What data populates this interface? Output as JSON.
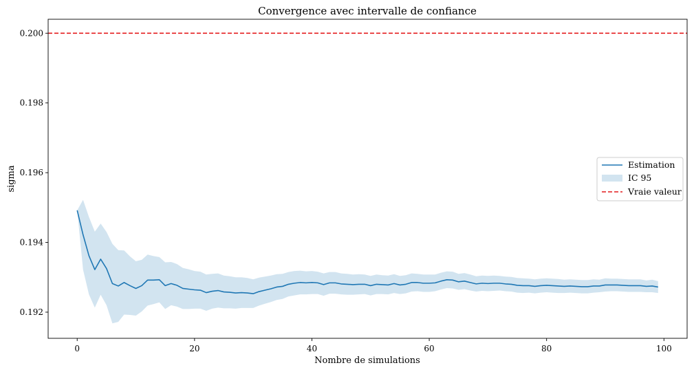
{
  "chart_data": {
    "type": "line",
    "title": "Convergence avec intervalle de confiance",
    "xlabel": "Nombre de simulations",
    "ylabel": "sigma",
    "xlim": [
      -4.95,
      103.95
    ],
    "ylim": [
      0.19125,
      0.2004
    ],
    "xticks": [
      0,
      20,
      40,
      60,
      80,
      100
    ],
    "xtick_labels": [
      "0",
      "20",
      "40",
      "60",
      "80",
      "100"
    ],
    "yticks": [
      0.192,
      0.194,
      0.196,
      0.198,
      0.2
    ],
    "ytick_labels": [
      "0.192",
      "0.194",
      "0.196",
      "0.198",
      "0.200"
    ],
    "grid": false,
    "legend_position": "center-right",
    "colors": {
      "estimation": "#1f77b4",
      "band": "#1f77b4",
      "true_value": "#e41a1c"
    },
    "estimation": {
      "name": "Estimation",
      "x": [
        0,
        1,
        2,
        3,
        4,
        5,
        6,
        7,
        8,
        9,
        10,
        11,
        12,
        13,
        14,
        15,
        16,
        17,
        18,
        19,
        20,
        21,
        22,
        23,
        24,
        25,
        26,
        27,
        28,
        29,
        30,
        31,
        32,
        33,
        34,
        35,
        36,
        37,
        38,
        39,
        40,
        41,
        42,
        43,
        44,
        45,
        46,
        47,
        48,
        49,
        50,
        51,
        52,
        53,
        54,
        55,
        56,
        57,
        58,
        59,
        60,
        61,
        62,
        63,
        64,
        65,
        66,
        67,
        68,
        69,
        70,
        71,
        72,
        73,
        74,
        75,
        76,
        77,
        78,
        79,
        80,
        81,
        82,
        83,
        84,
        85,
        86,
        87,
        88,
        89,
        90,
        91,
        92,
        93,
        94,
        95,
        96,
        97,
        98,
        99
      ],
      "y": [
        0.19492,
        0.19422,
        0.19362,
        0.19322,
        0.19352,
        0.19325,
        0.19282,
        0.19275,
        0.19285,
        0.19276,
        0.19268,
        0.19276,
        0.19292,
        0.19292,
        0.19293,
        0.19276,
        0.19282,
        0.19277,
        0.19268,
        0.19266,
        0.19264,
        0.19263,
        0.19256,
        0.1926,
        0.19262,
        0.19258,
        0.19257,
        0.19255,
        0.19256,
        0.19255,
        0.19253,
        0.19259,
        0.19263,
        0.19267,
        0.19272,
        0.19274,
        0.1928,
        0.19283,
        0.19285,
        0.19284,
        0.19285,
        0.19284,
        0.19279,
        0.19284,
        0.19284,
        0.19281,
        0.1928,
        0.19279,
        0.1928,
        0.1928,
        0.19276,
        0.1928,
        0.19279,
        0.19278,
        0.19282,
        0.19278,
        0.1928,
        0.19285,
        0.19285,
        0.19283,
        0.19283,
        0.19284,
        0.19289,
        0.19293,
        0.19292,
        0.19287,
        0.19289,
        0.19285,
        0.19281,
        0.19283,
        0.19282,
        0.19283,
        0.19283,
        0.19281,
        0.1928,
        0.19277,
        0.19276,
        0.19276,
        0.19274,
        0.19276,
        0.19277,
        0.19276,
        0.19275,
        0.19274,
        0.19275,
        0.19274,
        0.19273,
        0.19273,
        0.19275,
        0.19275,
        0.19278,
        0.19278,
        0.19278,
        0.19277,
        0.19276,
        0.19276,
        0.19276,
        0.19274,
        0.19275,
        0.19272
      ]
    },
    "confidence_band": {
      "name": "IC 95",
      "lower": [
        0.19492,
        0.19322,
        0.19251,
        0.19213,
        0.1925,
        0.1922,
        0.19168,
        0.19172,
        0.19193,
        0.19192,
        0.1919,
        0.19202,
        0.19219,
        0.19223,
        0.19228,
        0.19209,
        0.1922,
        0.19216,
        0.19209,
        0.19209,
        0.1921,
        0.1921,
        0.19204,
        0.1921,
        0.19213,
        0.19211,
        0.19211,
        0.1921,
        0.19212,
        0.19212,
        0.19212,
        0.19219,
        0.19224,
        0.19229,
        0.19235,
        0.19238,
        0.19245,
        0.19248,
        0.19251,
        0.19251,
        0.19252,
        0.19252,
        0.19247,
        0.19253,
        0.19253,
        0.19251,
        0.1925,
        0.1925,
        0.19251,
        0.19252,
        0.19248,
        0.19252,
        0.19252,
        0.19251,
        0.19255,
        0.19252,
        0.19254,
        0.19259,
        0.1926,
        0.19258,
        0.19258,
        0.1926,
        0.19265,
        0.19269,
        0.19268,
        0.19264,
        0.19266,
        0.19262,
        0.19259,
        0.19261,
        0.1926,
        0.19261,
        0.19262,
        0.1926,
        0.19259,
        0.19256,
        0.19255,
        0.19256,
        0.19254,
        0.19256,
        0.19257,
        0.19256,
        0.19255,
        0.19255,
        0.19256,
        0.19255,
        0.19254,
        0.19254,
        0.19256,
        0.19257,
        0.19259,
        0.1926,
        0.1926,
        0.19259,
        0.19258,
        0.19258,
        0.19258,
        0.19257,
        0.19257,
        0.19255
      ],
      "upper": [
        0.19492,
        0.19522,
        0.19473,
        0.19431,
        0.19454,
        0.1943,
        0.19396,
        0.19378,
        0.19377,
        0.1936,
        0.19346,
        0.1935,
        0.19365,
        0.19361,
        0.19358,
        0.19343,
        0.19344,
        0.19338,
        0.19327,
        0.19323,
        0.19318,
        0.19316,
        0.19308,
        0.1931,
        0.19311,
        0.19305,
        0.19303,
        0.193,
        0.193,
        0.19298,
        0.19294,
        0.19299,
        0.19302,
        0.19305,
        0.19309,
        0.1931,
        0.19315,
        0.19318,
        0.19319,
        0.19317,
        0.19318,
        0.19316,
        0.19311,
        0.19315,
        0.19315,
        0.19311,
        0.1931,
        0.19308,
        0.19309,
        0.19308,
        0.19304,
        0.19308,
        0.19306,
        0.19305,
        0.19309,
        0.19304,
        0.19306,
        0.19311,
        0.1931,
        0.19308,
        0.19308,
        0.19308,
        0.19313,
        0.19317,
        0.19316,
        0.1931,
        0.19312,
        0.19308,
        0.19303,
        0.19305,
        0.19304,
        0.19305,
        0.19304,
        0.19302,
        0.19301,
        0.19298,
        0.19297,
        0.19296,
        0.19294,
        0.19296,
        0.19297,
        0.19296,
        0.19295,
        0.19293,
        0.19294,
        0.19293,
        0.19292,
        0.19292,
        0.19294,
        0.19293,
        0.19297,
        0.19296,
        0.19296,
        0.19295,
        0.19294,
        0.19294,
        0.19294,
        0.19291,
        0.19293,
        0.19289
      ]
    },
    "true_value": {
      "name": "Vraie valeur",
      "y": 0.2
    }
  }
}
